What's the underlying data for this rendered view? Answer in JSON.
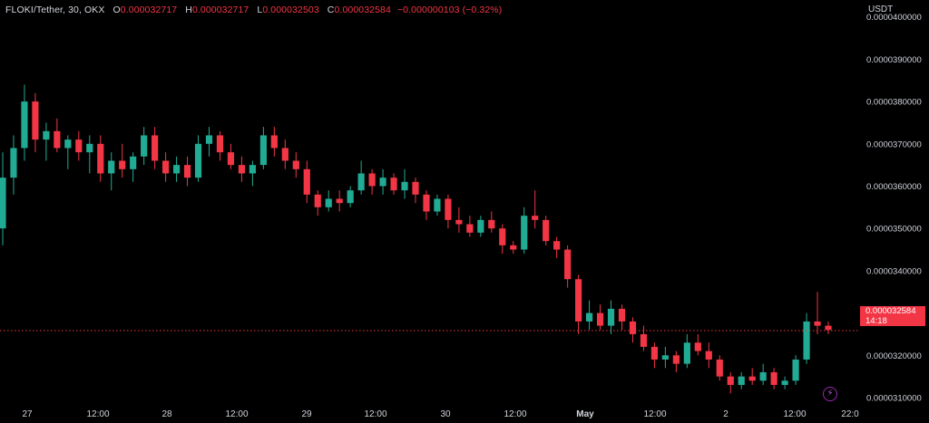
{
  "legend": {
    "symbol": "FLOKI/Tether, 30, OKX",
    "o_label": "O",
    "o_value": "0.000032717",
    "h_label": "H",
    "h_value": "0.000032717",
    "l_label": "L",
    "l_value": "0.000032503",
    "c_label": "C",
    "c_value": "0.000032584",
    "change": "−0.000000103 (−0.32%)"
  },
  "currency": "USDT",
  "last_price": {
    "value": "0.000032584",
    "countdown": "14:18"
  },
  "icons": {
    "alert": "lightning-icon"
  },
  "colors": {
    "up": "#22ab94",
    "down": "#f23645",
    "background": "#000000",
    "text": "#d1d4dc"
  },
  "chart_data": {
    "type": "candlestick",
    "y_ticks": [
      "0.0000400000",
      "0.0000390000",
      "0.0000380000",
      "0.0000370000",
      "0.0000360000",
      "0.0000350000",
      "0.0000340000",
      "0.0000330000",
      "0.0000320000",
      "0.0000310000"
    ],
    "ylim": [
      3.04e-05,
      4.04e-05
    ],
    "x_ticks": [
      "27",
      "12:00",
      "28",
      "12:00",
      "29",
      "12:00",
      "30",
      "12:00",
      "May",
      "12:00",
      "2",
      "12:00",
      "22:0"
    ],
    "last_price_line": 3.2584e-05,
    "ohlc": [
      [
        3.5e-05,
        3.68e-05,
        3.46e-05,
        3.62e-05
      ],
      [
        3.62e-05,
        3.72e-05,
        3.58e-05,
        3.69e-05
      ],
      [
        3.69e-05,
        3.84e-05,
        3.66e-05,
        3.8e-05
      ],
      [
        3.8e-05,
        3.82e-05,
        3.68e-05,
        3.71e-05
      ],
      [
        3.71e-05,
        3.75e-05,
        3.66e-05,
        3.73e-05
      ],
      [
        3.73e-05,
        3.76e-05,
        3.68e-05,
        3.69e-05
      ],
      [
        3.69e-05,
        3.72e-05,
        3.64e-05,
        3.71e-05
      ],
      [
        3.71e-05,
        3.73e-05,
        3.66e-05,
        3.68e-05
      ],
      [
        3.68e-05,
        3.72e-05,
        3.63e-05,
        3.7e-05
      ],
      [
        3.7e-05,
        3.72e-05,
        3.61e-05,
        3.63e-05
      ],
      [
        3.63e-05,
        3.68e-05,
        3.59e-05,
        3.66e-05
      ],
      [
        3.66e-05,
        3.7e-05,
        3.62e-05,
        3.64e-05
      ],
      [
        3.64e-05,
        3.68e-05,
        3.61e-05,
        3.67e-05
      ],
      [
        3.67e-05,
        3.74e-05,
        3.65e-05,
        3.72e-05
      ],
      [
        3.72e-05,
        3.74e-05,
        3.64e-05,
        3.66e-05
      ],
      [
        3.66e-05,
        3.68e-05,
        3.61e-05,
        3.63e-05
      ],
      [
        3.63e-05,
        3.67e-05,
        3.61e-05,
        3.65e-05
      ],
      [
        3.65e-05,
        3.67e-05,
        3.6e-05,
        3.62e-05
      ],
      [
        3.62e-05,
        3.72e-05,
        3.61e-05,
        3.7e-05
      ],
      [
        3.7e-05,
        3.74e-05,
        3.67e-05,
        3.72e-05
      ],
      [
        3.72e-05,
        3.73e-05,
        3.66e-05,
        3.68e-05
      ],
      [
        3.68e-05,
        3.7e-05,
        3.64e-05,
        3.65e-05
      ],
      [
        3.65e-05,
        3.67e-05,
        3.61e-05,
        3.63e-05
      ],
      [
        3.63e-05,
        3.66e-05,
        3.6e-05,
        3.65e-05
      ],
      [
        3.65e-05,
        3.74e-05,
        3.64e-05,
        3.72e-05
      ],
      [
        3.72e-05,
        3.74e-05,
        3.67e-05,
        3.69e-05
      ],
      [
        3.69e-05,
        3.71e-05,
        3.64e-05,
        3.66e-05
      ],
      [
        3.66e-05,
        3.68e-05,
        3.62e-05,
        3.64e-05
      ],
      [
        3.64e-05,
        3.66e-05,
        3.56e-05,
        3.58e-05
      ],
      [
        3.58e-05,
        3.59e-05,
        3.53e-05,
        3.55e-05
      ],
      [
        3.55e-05,
        3.59e-05,
        3.54e-05,
        3.57e-05
      ],
      [
        3.57e-05,
        3.59e-05,
        3.54e-05,
        3.56e-05
      ],
      [
        3.56e-05,
        3.6e-05,
        3.55e-05,
        3.59e-05
      ],
      [
        3.59e-05,
        3.66e-05,
        3.58e-05,
        3.63e-05
      ],
      [
        3.63e-05,
        3.64e-05,
        3.58e-05,
        3.6e-05
      ],
      [
        3.6e-05,
        3.64e-05,
        3.58e-05,
        3.62e-05
      ],
      [
        3.62e-05,
        3.63e-05,
        3.58e-05,
        3.59e-05
      ],
      [
        3.59e-05,
        3.64e-05,
        3.57e-05,
        3.61e-05
      ],
      [
        3.61e-05,
        3.62e-05,
        3.56e-05,
        3.58e-05
      ],
      [
        3.58e-05,
        3.59e-05,
        3.52e-05,
        3.54e-05
      ],
      [
        3.54e-05,
        3.58e-05,
        3.53e-05,
        3.57e-05
      ],
      [
        3.57e-05,
        3.58e-05,
        3.5e-05,
        3.52e-05
      ],
      [
        3.52e-05,
        3.55e-05,
        3.49e-05,
        3.51e-05
      ],
      [
        3.51e-05,
        3.53e-05,
        3.48e-05,
        3.49e-05
      ],
      [
        3.49e-05,
        3.53e-05,
        3.48e-05,
        3.52e-05
      ],
      [
        3.52e-05,
        3.54e-05,
        3.49e-05,
        3.5e-05
      ],
      [
        3.5e-05,
        3.51e-05,
        3.44e-05,
        3.46e-05
      ],
      [
        3.46e-05,
        3.47e-05,
        3.44e-05,
        3.45e-05
      ],
      [
        3.45e-05,
        3.55e-05,
        3.44e-05,
        3.53e-05
      ],
      [
        3.53e-05,
        3.59e-05,
        3.5e-05,
        3.52e-05
      ],
      [
        3.52e-05,
        3.53e-05,
        3.46e-05,
        3.47e-05
      ],
      [
        3.47e-05,
        3.48e-05,
        3.43e-05,
        3.45e-05
      ],
      [
        3.45e-05,
        3.46e-05,
        3.36e-05,
        3.38e-05
      ],
      [
        3.38e-05,
        3.39e-05,
        3.25e-05,
        3.28e-05
      ],
      [
        3.28e-05,
        3.33e-05,
        3.26e-05,
        3.3e-05
      ],
      [
        3.3e-05,
        3.32e-05,
        3.26e-05,
        3.27e-05
      ],
      [
        3.27e-05,
        3.33e-05,
        3.25e-05,
        3.31e-05
      ],
      [
        3.31e-05,
        3.32e-05,
        3.26e-05,
        3.28e-05
      ],
      [
        3.28e-05,
        3.29e-05,
        3.23e-05,
        3.25e-05
      ],
      [
        3.25e-05,
        3.27e-05,
        3.21e-05,
        3.22e-05
      ],
      [
        3.22e-05,
        3.23e-05,
        3.17e-05,
        3.19e-05
      ],
      [
        3.19e-05,
        3.22e-05,
        3.17e-05,
        3.2e-05
      ],
      [
        3.2e-05,
        3.21e-05,
        3.16e-05,
        3.18e-05
      ],
      [
        3.18e-05,
        3.25e-05,
        3.17e-05,
        3.23e-05
      ],
      [
        3.23e-05,
        3.25e-05,
        3.2e-05,
        3.21e-05
      ],
      [
        3.21e-05,
        3.23e-05,
        3.17e-05,
        3.19e-05
      ],
      [
        3.19e-05,
        3.2e-05,
        3.14e-05,
        3.15e-05
      ],
      [
        3.15e-05,
        3.16e-05,
        3.11e-05,
        3.13e-05
      ],
      [
        3.13e-05,
        3.16e-05,
        3.12e-05,
        3.15e-05
      ],
      [
        3.15e-05,
        3.17e-05,
        3.13e-05,
        3.14e-05
      ],
      [
        3.14e-05,
        3.18e-05,
        3.13e-05,
        3.16e-05
      ],
      [
        3.16e-05,
        3.17e-05,
        3.12e-05,
        3.13e-05
      ],
      [
        3.13e-05,
        3.15e-05,
        3.12e-05,
        3.14e-05
      ],
      [
        3.14e-05,
        3.2e-05,
        3.13e-05,
        3.19e-05
      ],
      [
        3.19e-05,
        3.3e-05,
        3.18e-05,
        3.28e-05
      ],
      [
        3.28e-05,
        3.35e-05,
        3.25e-05,
        3.27e-05
      ],
      [
        3.27e-05,
        3.28e-05,
        3.25e-05,
        3.26e-05
      ]
    ]
  }
}
